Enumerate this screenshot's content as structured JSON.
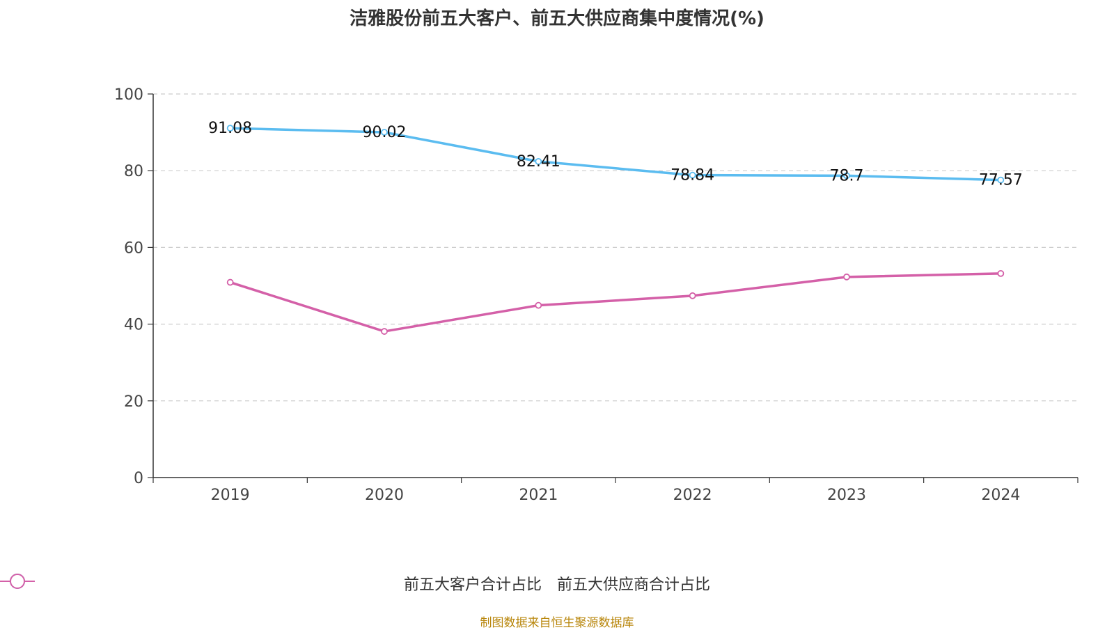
{
  "title": "洁雅股份前五大客户、前五大供应商集中度情况(%)",
  "source": "制图数据来自恒生聚源数据库",
  "colors": {
    "customers": "#5bbcf0",
    "suppliers": "#d460a8",
    "axis": "#333333",
    "grid": "#cccccc"
  },
  "chart_data": {
    "type": "line",
    "title": "洁雅股份前五大客户、前五大供应商集中度情况(%)",
    "categories": [
      "2019",
      "2020",
      "2021",
      "2022",
      "2023",
      "2024"
    ],
    "ylim": [
      0,
      100
    ],
    "yticks": [
      0,
      20,
      40,
      60,
      80,
      100
    ],
    "grid": true,
    "legend_position": "bottom-center",
    "series": [
      {
        "name": "前五大客户合计占比",
        "values": [
          91.08,
          90.02,
          82.41,
          78.84,
          78.7,
          77.57
        ],
        "labels": [
          "91.08",
          "90.02",
          "82.41",
          "78.84",
          "78.7",
          "77.57"
        ],
        "show_labels": true
      },
      {
        "name": "前五大供应商合计占比",
        "values": [
          50.9,
          38.1,
          44.9,
          47.4,
          52.3,
          53.2
        ],
        "show_labels": false
      }
    ]
  }
}
